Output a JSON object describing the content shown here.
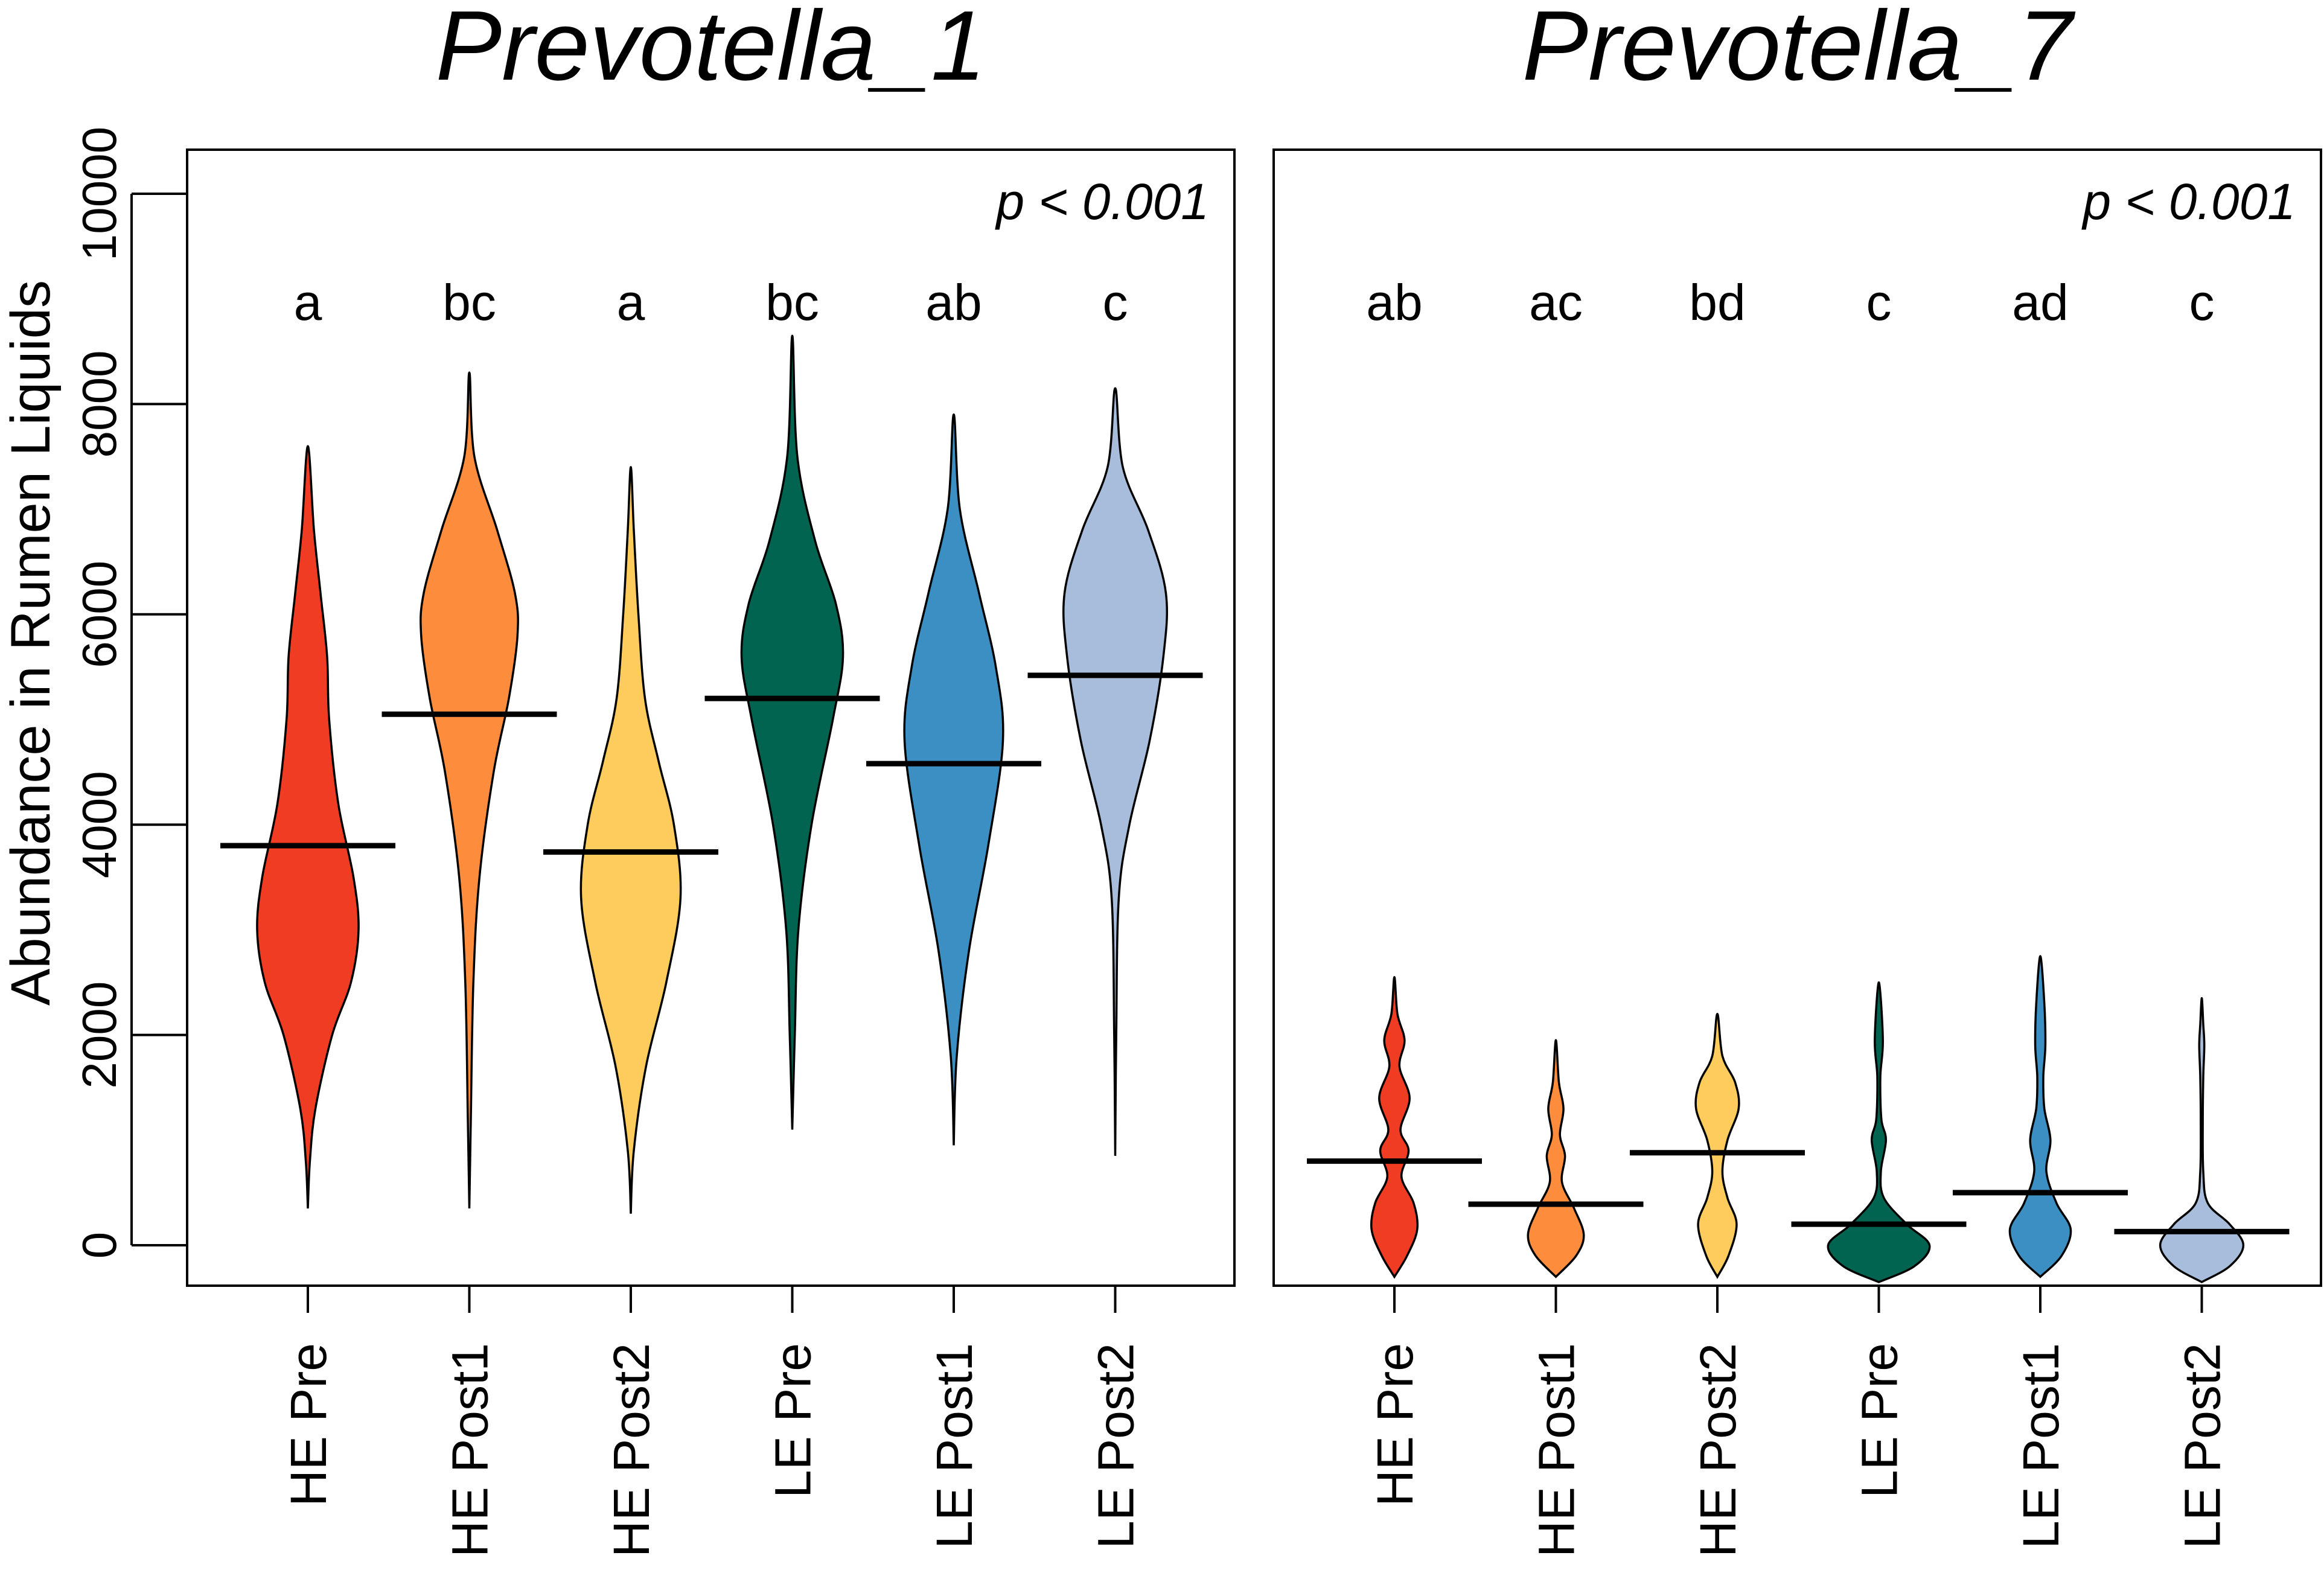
{
  "chart_data": {
    "type": "violin",
    "ylabel": "Abundance in Rumen Liquids",
    "ylim": [
      0,
      10000
    ],
    "yticks": [
      0,
      2000,
      4000,
      6000,
      8000,
      10000
    ],
    "groups": [
      "HE Pre",
      "HE Post1",
      "HE Post2",
      "LE Pre",
      "LE Post1",
      "LE Post2"
    ],
    "colors": [
      "#f03c22",
      "#fd8d3c",
      "#fecc5c",
      "#006450",
      "#3b8fc2",
      "#a8bcdc"
    ],
    "panels": [
      {
        "title": "Prevotella_1",
        "p_text": "p < 0.001",
        "letters": [
          "a",
          "bc",
          "a",
          "bc",
          "ab",
          "c"
        ],
        "medians": [
          3800,
          5050,
          3740,
          5200,
          4580,
          5420
        ],
        "violins": [
          {
            "min": 350,
            "max": 7600,
            "profile": [
              [
                350,
                0
              ],
              [
                800,
                0.04
              ],
              [
                1300,
                0.15
              ],
              [
                2000,
                0.48
              ],
              [
                2500,
                0.85
              ],
              [
                3000,
                1.0
              ],
              [
                3500,
                0.9
              ],
              [
                4200,
                0.6
              ],
              [
                5000,
                0.42
              ],
              [
                5600,
                0.38
              ],
              [
                6200,
                0.25
              ],
              [
                6800,
                0.12
              ],
              [
                7600,
                0
              ]
            ]
          },
          {
            "min": 350,
            "max": 8300,
            "profile": [
              [
                350,
                0
              ],
              [
                1200,
                0.03
              ],
              [
                2500,
                0.08
              ],
              [
                3500,
                0.2
              ],
              [
                4500,
                0.48
              ],
              [
                5200,
                0.78
              ],
              [
                5800,
                0.95
              ],
              [
                6200,
                0.9
              ],
              [
                6800,
                0.55
              ],
              [
                7500,
                0.1
              ],
              [
                8300,
                0
              ]
            ]
          },
          {
            "min": 300,
            "max": 7400,
            "profile": [
              [
                300,
                0
              ],
              [
                900,
                0.06
              ],
              [
                1700,
                0.3
              ],
              [
                2500,
                0.7
              ],
              [
                3300,
                0.98
              ],
              [
                4000,
                0.85
              ],
              [
                4600,
                0.55
              ],
              [
                5200,
                0.28
              ],
              [
                6000,
                0.15
              ],
              [
                6800,
                0.06
              ],
              [
                7400,
                0
              ]
            ]
          },
          {
            "min": 1100,
            "max": 8650,
            "profile": [
              [
                1100,
                0
              ],
              [
                2000,
                0.05
              ],
              [
                3000,
                0.12
              ],
              [
                4000,
                0.38
              ],
              [
                5000,
                0.8
              ],
              [
                5600,
                1.0
              ],
              [
                6100,
                0.86
              ],
              [
                6700,
                0.45
              ],
              [
                7500,
                0.1
              ],
              [
                8650,
                0
              ]
            ]
          },
          {
            "min": 950,
            "max": 7900,
            "profile": [
              [
                950,
                0
              ],
              [
                1800,
                0.06
              ],
              [
                2800,
                0.3
              ],
              [
                3800,
                0.68
              ],
              [
                4800,
                0.97
              ],
              [
                5500,
                0.83
              ],
              [
                6200,
                0.5
              ],
              [
                7000,
                0.12
              ],
              [
                7900,
                0
              ]
            ]
          },
          {
            "min": 850,
            "max": 8150,
            "profile": [
              [
                850,
                0
              ],
              [
                2000,
                0.02
              ],
              [
                3300,
                0.07
              ],
              [
                4000,
                0.28
              ],
              [
                4800,
                0.68
              ],
              [
                5600,
                0.95
              ],
              [
                6200,
                1.0
              ],
              [
                6800,
                0.65
              ],
              [
                7400,
                0.15
              ],
              [
                8150,
                0
              ]
            ]
          }
        ]
      },
      {
        "title": "Prevotella_7",
        "p_text": "p < 0.001",
        "letters": [
          "ab",
          "ac",
          "bd",
          "c",
          "ad",
          "c"
        ],
        "medians": [
          800,
          390,
          880,
          200,
          500,
          130
        ],
        "violins": [
          {
            "min": -300,
            "max": 2550,
            "profile": [
              [
                -300,
                0
              ],
              [
                -100,
                0.25
              ],
              [
                150,
                0.45
              ],
              [
                400,
                0.38
              ],
              [
                650,
                0.14
              ],
              [
                900,
                0.28
              ],
              [
                1100,
                0.12
              ],
              [
                1400,
                0.3
              ],
              [
                1700,
                0.1
              ],
              [
                1950,
                0.2
              ],
              [
                2200,
                0.06
              ],
              [
                2550,
                0
              ]
            ]
          },
          {
            "min": -300,
            "max": 1950,
            "profile": [
              [
                -300,
                0
              ],
              [
                -100,
                0.4
              ],
              [
                100,
                0.55
              ],
              [
                350,
                0.36
              ],
              [
                600,
                0.12
              ],
              [
                850,
                0.18
              ],
              [
                1050,
                0.08
              ],
              [
                1300,
                0.15
              ],
              [
                1550,
                0.06
              ],
              [
                1950,
                0
              ]
            ]
          },
          {
            "min": -300,
            "max": 2200,
            "profile": [
              [
                -300,
                0
              ],
              [
                -100,
                0.22
              ],
              [
                200,
                0.38
              ],
              [
                450,
                0.2
              ],
              [
                700,
                0.1
              ],
              [
                1000,
                0.2
              ],
              [
                1300,
                0.42
              ],
              [
                1550,
                0.35
              ],
              [
                1800,
                0.1
              ],
              [
                2200,
                0
              ]
            ]
          },
          {
            "min": -350,
            "max": 2500,
            "profile": [
              [
                -350,
                0
              ],
              [
                -200,
                0.7
              ],
              [
                0,
                1.0
              ],
              [
                200,
                0.55
              ],
              [
                450,
                0.1
              ],
              [
                700,
                0.04
              ],
              [
                1000,
                0.14
              ],
              [
                1200,
                0.05
              ],
              [
                1600,
                0.03
              ],
              [
                1950,
                0.08
              ],
              [
                2500,
                0
              ]
            ]
          },
          {
            "min": -300,
            "max": 2750,
            "profile": [
              [
                -300,
                0
              ],
              [
                -100,
                0.42
              ],
              [
                150,
                0.6
              ],
              [
                400,
                0.32
              ],
              [
                700,
                0.12
              ],
              [
                1000,
                0.2
              ],
              [
                1300,
                0.08
              ],
              [
                1600,
                0.06
              ],
              [
                1900,
                0.1
              ],
              [
                2300,
                0.08
              ],
              [
                2750,
                0
              ]
            ]
          },
          {
            "min": -350,
            "max": 2350,
            "profile": [
              [
                -350,
                0
              ],
              [
                -200,
                0.55
              ],
              [
                0,
                0.82
              ],
              [
                200,
                0.55
              ],
              [
                400,
                0.12
              ],
              [
                700,
                0.03
              ],
              [
                1200,
                0.02
              ],
              [
                1600,
                0.03
              ],
              [
                1900,
                0.05
              ],
              [
                2100,
                0.03
              ],
              [
                2350,
                0
              ]
            ]
          }
        ]
      }
    ]
  }
}
